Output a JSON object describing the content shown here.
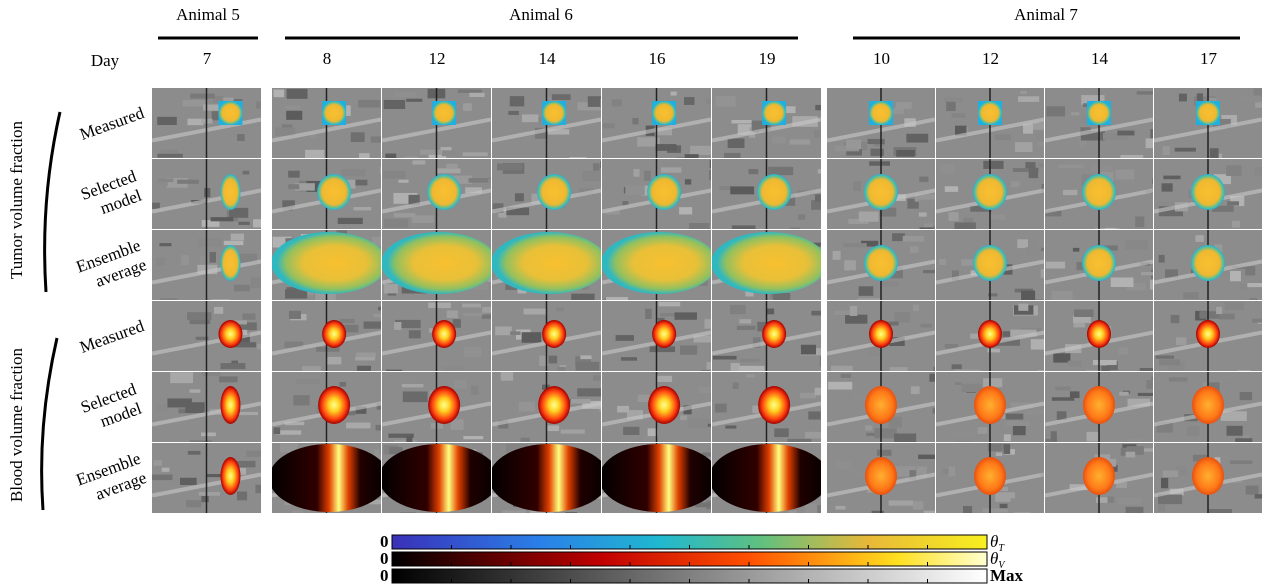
{
  "day_label": "Day",
  "groups": [
    {
      "label": "Animal 5",
      "days": [
        "7"
      ]
    },
    {
      "label": "Animal 6",
      "days": [
        "8",
        "12",
        "14",
        "16",
        "19"
      ]
    },
    {
      "label": "Animal 7",
      "days": [
        "10",
        "12",
        "14",
        "17"
      ]
    }
  ],
  "row_groups": [
    {
      "label": "Tumor volume fraction",
      "rows": [
        {
          "lines": [
            "Measured"
          ]
        },
        {
          "lines": [
            "Selected",
            "model"
          ]
        },
        {
          "lines": [
            "Ensemble",
            "average"
          ]
        }
      ]
    },
    {
      "label": "Blood volume fraction",
      "rows": [
        {
          "lines": [
            "Measured"
          ]
        },
        {
          "lines": [
            "Selected",
            "model"
          ]
        },
        {
          "lines": [
            "Ensemble",
            "average"
          ]
        }
      ]
    }
  ],
  "colorbars": [
    {
      "zero": "0",
      "symbol": "θ",
      "sub": "T"
    },
    {
      "zero": "0",
      "symbol": "θ",
      "sub": "V"
    },
    {
      "zero": "0",
      "symbol": "Max"
    }
  ]
}
